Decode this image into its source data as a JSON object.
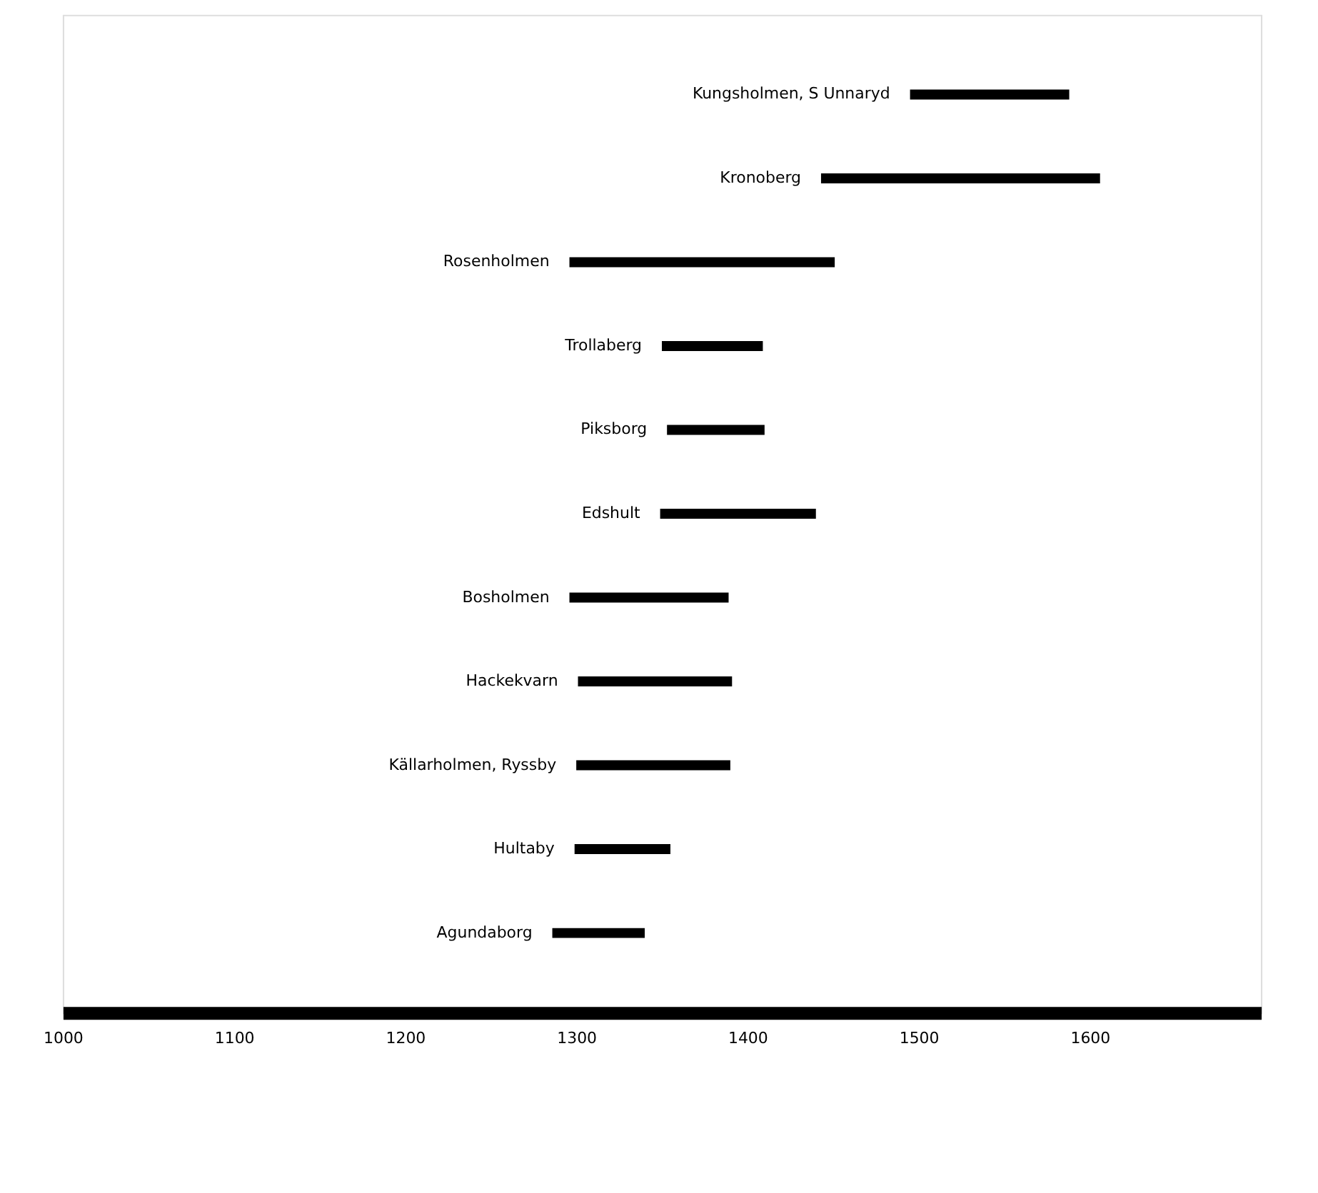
{
  "chart_data": {
    "type": "bar",
    "orientation": "horizontal",
    "grid": false,
    "categories": [
      "Kungsholmen, S Unnaryd",
      "Kronoberg",
      "Rosenholmen",
      "Trollaberg",
      "Piksborg",
      "Edshult",
      "Bosholmen",
      "Hackekvarn",
      "Källarholmen, Ryssby",
      "Hultaby",
      "Agundaborg"
    ],
    "base": [
      1495,
      1443,
      1296,
      1350,
      1353,
      1349,
      1296,
      1301,
      1300,
      1299,
      1286
    ],
    "values": [
      93,
      163,
      155,
      59,
      57,
      91,
      93,
      90,
      90,
      56,
      54
    ],
    "color": "#000000",
    "xlim": [
      1000,
      1700
    ],
    "xticks": [
      1000,
      1100,
      1200,
      1300,
      1400,
      1500,
      1600
    ]
  }
}
